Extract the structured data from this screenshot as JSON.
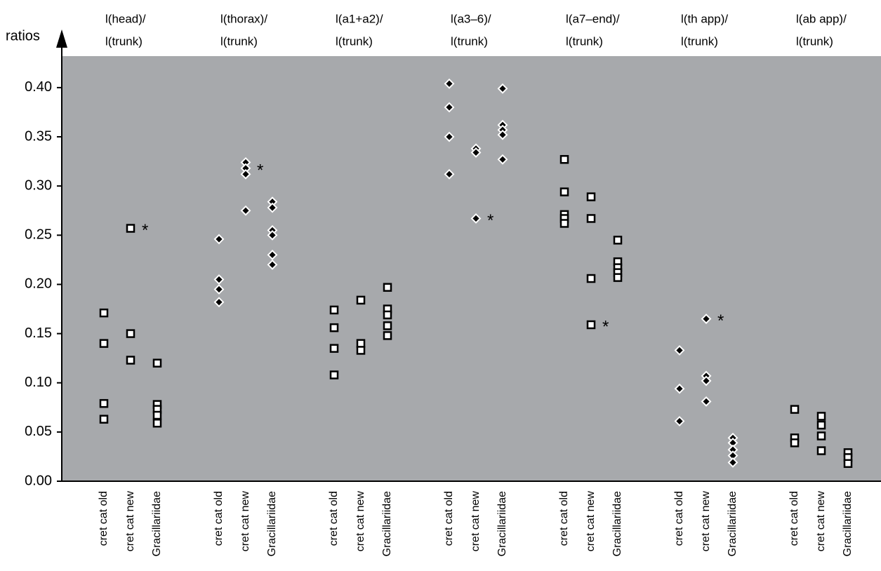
{
  "chart_data": {
    "type": "strip",
    "y_label": "ratios",
    "ylim": [
      0,
      0.432
    ],
    "yticks": [
      {
        "value": 0,
        "label": "0.00"
      },
      {
        "value": 0.05,
        "label": "0.05"
      },
      {
        "value": 0.1,
        "label": "0.10"
      },
      {
        "value": 0.15,
        "label": "0.15"
      },
      {
        "value": 0.2,
        "label": "0.20"
      },
      {
        "value": 0.25,
        "label": "0.25"
      },
      {
        "value": 0.3,
        "label": "0.30"
      },
      {
        "value": 0.35,
        "label": "0.35"
      },
      {
        "value": 0.4,
        "label": "0.40"
      }
    ],
    "background": "#a7a9ac",
    "groups": [
      {
        "title_lines": [
          "l(head)/",
          "l(trunk)"
        ],
        "marker": "square",
        "series": [
          {
            "name": "cret cat old",
            "values": [
              0.171,
              0.14,
              0.079,
              0.063
            ]
          },
          {
            "name": "cret cat new",
            "values": [
              0.257,
              0.15,
              0.123
            ]
          },
          {
            "name": "Gracillariidae",
            "values": [
              0.12,
              0.078,
              0.073,
              0.067,
              0.059
            ]
          }
        ],
        "annotations": [
          {
            "text": "*",
            "category": "cret cat new",
            "y": 0.257
          }
        ]
      },
      {
        "title_lines": [
          "l(thorax)/",
          "l(trunk)"
        ],
        "marker": "diamond",
        "series": [
          {
            "name": "cret cat old",
            "values": [
              0.246,
              0.205,
              0.195,
              0.182
            ]
          },
          {
            "name": "cret cat new",
            "values": [
              0.324,
              0.318,
              0.312,
              0.275
            ]
          },
          {
            "name": "Gracillariidae",
            "values": [
              0.284,
              0.278,
              0.255,
              0.25,
              0.23,
              0.22
            ]
          }
        ],
        "annotations": [
          {
            "text": "*",
            "category": "cret cat new",
            "y": 0.318
          }
        ]
      },
      {
        "title_lines": [
          "l(a1+a2)/",
          "l(trunk)"
        ],
        "marker": "square",
        "series": [
          {
            "name": "cret cat old",
            "values": [
              0.174,
              0.156,
              0.135,
              0.108
            ]
          },
          {
            "name": "cret cat new",
            "values": [
              0.184,
              0.14,
              0.133
            ]
          },
          {
            "name": "Gracillariidae",
            "values": [
              0.197,
              0.175,
              0.169,
              0.158,
              0.148
            ]
          }
        ],
        "annotations": []
      },
      {
        "title_lines": [
          "l(a3–6)/",
          "l(trunk)"
        ],
        "marker": "diamond",
        "series": [
          {
            "name": "cret cat old",
            "values": [
              0.404,
              0.38,
              0.35,
              0.312
            ]
          },
          {
            "name": "cret cat new",
            "values": [
              0.338,
              0.334,
              0.267
            ]
          },
          {
            "name": "Gracillariidae",
            "values": [
              0.399,
              0.362,
              0.357,
              0.352,
              0.327
            ]
          }
        ],
        "annotations": [
          {
            "text": "*",
            "category": "cret cat new",
            "y": 0.267
          }
        ]
      },
      {
        "title_lines": [
          "l(a7–end)/",
          "l(trunk)"
        ],
        "marker": "square",
        "series": [
          {
            "name": "cret cat old",
            "values": [
              0.327,
              0.294,
              0.271,
              0.267,
              0.262
            ]
          },
          {
            "name": "cret cat new",
            "values": [
              0.289,
              0.267,
              0.206,
              0.159
            ]
          },
          {
            "name": "Gracillariidae",
            "values": [
              0.245,
              0.223,
              0.217,
              0.212,
              0.207
            ]
          }
        ],
        "annotations": [
          {
            "text": "*",
            "category": "cret cat new",
            "y": 0.159
          }
        ]
      },
      {
        "title_lines": [
          "l(th app)/",
          "l(trunk)"
        ],
        "marker": "diamond",
        "series": [
          {
            "name": "cret cat old",
            "values": [
              0.133,
              0.094,
              0.061
            ]
          },
          {
            "name": "cret cat new",
            "values": [
              0.165,
              0.107,
              0.102,
              0.081
            ]
          },
          {
            "name": "Gracillariidae",
            "values": [
              0.044,
              0.039,
              0.032,
              0.026,
              0.019
            ]
          }
        ],
        "annotations": [
          {
            "text": "*",
            "category": "cret cat new",
            "y": 0.165
          }
        ]
      },
      {
        "title_lines": [
          "l(ab app)/",
          "l(trunk)"
        ],
        "marker": "square",
        "series": [
          {
            "name": "cret cat old",
            "values": [
              0.073,
              0.044,
              0.039
            ]
          },
          {
            "name": "cret cat new",
            "values": [
              0.066,
              0.057,
              0.046,
              0.031
            ]
          },
          {
            "name": "Gracillariidae",
            "values": [
              0.029,
              0.024,
              0.018
            ]
          }
        ],
        "annotations": []
      }
    ]
  }
}
